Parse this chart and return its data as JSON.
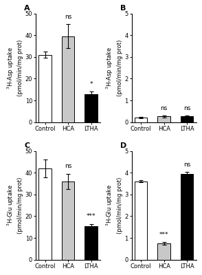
{
  "panels": [
    {
      "label": "A",
      "ylabel": "$^3$H-Asp uptake\n(pmol/min/mg prot)",
      "ylim": [
        0,
        50
      ],
      "yticks": [
        0,
        10,
        20,
        30,
        40,
        50
      ],
      "categories": [
        "Control",
        "HCA",
        "LTHA"
      ],
      "values": [
        31,
        39.5,
        13
      ],
      "errors": [
        1.5,
        5.5,
        1.0
      ],
      "colors": [
        "white",
        "#c8c8c8",
        "black"
      ],
      "significance": [
        "",
        "ns",
        "*"
      ],
      "sig_on_bar_idx": [
        1,
        2
      ]
    },
    {
      "label": "B",
      "ylabel": "$^3$H-Asp uptake\n(pmol/min/mg prot)",
      "ylim": [
        0,
        5
      ],
      "yticks": [
        0,
        1,
        2,
        3,
        4,
        5
      ],
      "categories": [
        "Control",
        "HCA",
        "LTHA"
      ],
      "values": [
        0.22,
        0.27,
        0.27
      ],
      "errors": [
        0.03,
        0.04,
        0.03
      ],
      "colors": [
        "white",
        "#c8c8c8",
        "black"
      ],
      "significance": [
        "",
        "ns",
        "ns"
      ],
      "sig_on_bar_idx": [
        1,
        2
      ]
    },
    {
      "label": "C",
      "ylabel": "$^3$H-Glu uptake\n(pmol/min/mg prot)",
      "ylim": [
        0,
        50
      ],
      "yticks": [
        0,
        10,
        20,
        30,
        40,
        50
      ],
      "categories": [
        "Control",
        "HCA",
        "LTHA"
      ],
      "values": [
        42,
        36,
        15.5
      ],
      "errors": [
        4.0,
        3.5,
        1.0
      ],
      "colors": [
        "white",
        "#c8c8c8",
        "black"
      ],
      "significance": [
        "",
        "ns",
        "***"
      ],
      "sig_on_bar_idx": [
        1,
        2
      ]
    },
    {
      "label": "D",
      "ylabel": "$^3$H-Glu uptake\n(pmol/min/mg prot)",
      "ylim": [
        0,
        5
      ],
      "yticks": [
        0,
        1,
        2,
        3,
        4,
        5
      ],
      "categories": [
        "Control",
        "HCA",
        "LTHA"
      ],
      "values": [
        3.6,
        0.75,
        3.95
      ],
      "errors": [
        0.05,
        0.07,
        0.08
      ],
      "colors": [
        "white",
        "#c8c8c8",
        "black"
      ],
      "significance": [
        "",
        "***",
        "ns"
      ],
      "sig_on_bar_idx": [
        1,
        2
      ]
    }
  ],
  "background_color": "white",
  "bar_width": 0.55,
  "label_fontsize": 6.0,
  "tick_fontsize": 6.0,
  "sig_fontsize": 6.5,
  "panel_label_fontsize": 8
}
